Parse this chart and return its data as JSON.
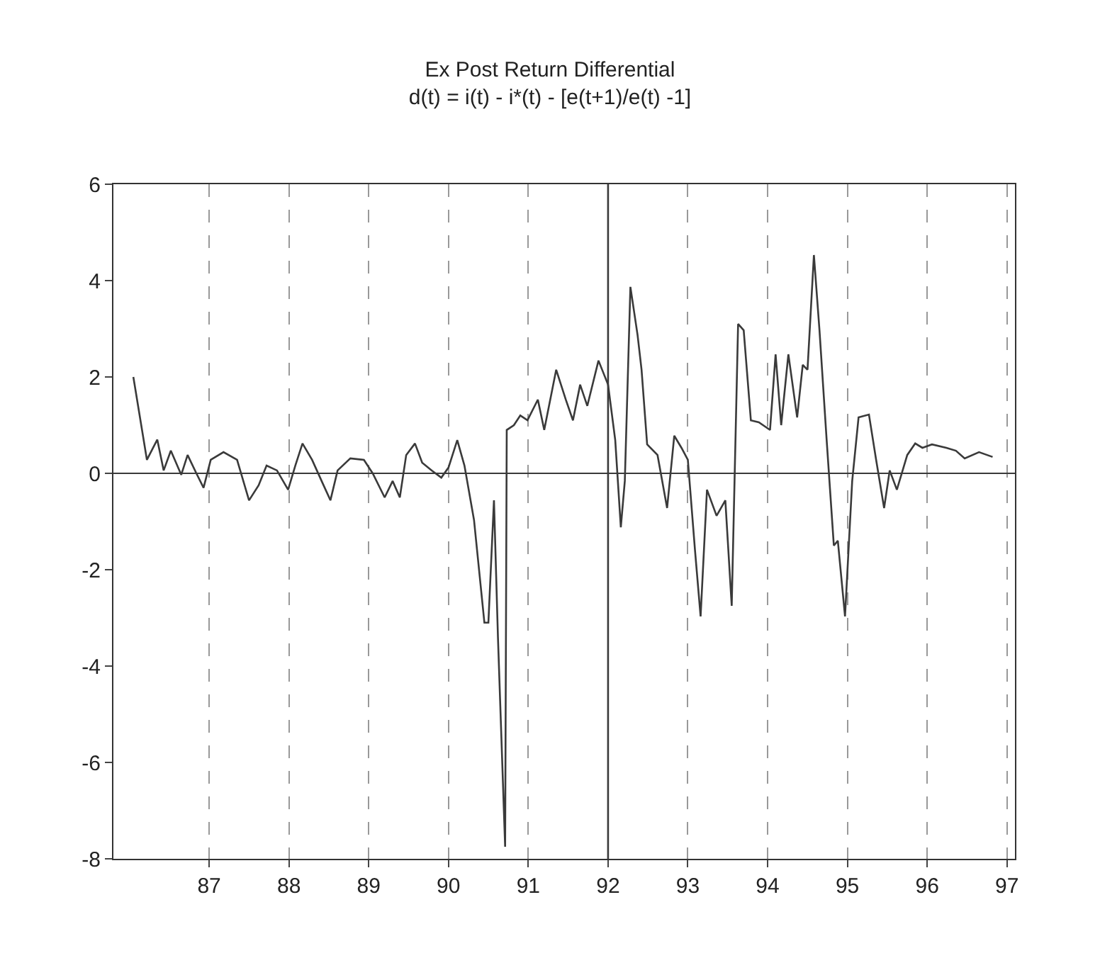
{
  "chart_data": {
    "type": "line",
    "title": "Ex Post Return Differential",
    "subtitle": "d(t) = i(t) - i*(t) - [e(t+1)/e(t) -1]",
    "x": [
      86.05,
      86.22,
      86.35,
      86.43,
      86.52,
      86.65,
      86.73,
      86.84,
      86.93,
      87.02,
      87.18,
      87.35,
      87.5,
      87.62,
      87.72,
      87.85,
      87.99,
      88.08,
      88.17,
      88.29,
      88.41,
      88.52,
      88.61,
      88.77,
      88.94,
      89.05,
      89.2,
      89.3,
      89.39,
      89.47,
      89.58,
      89.67,
      89.79,
      89.91,
      90.0,
      90.11,
      90.2,
      90.32,
      90.45,
      90.5,
      90.57,
      90.62,
      90.71,
      90.73,
      90.82,
      90.9,
      90.99,
      91.12,
      91.2,
      91.35,
      91.47,
      91.56,
      91.65,
      91.74,
      91.88,
      92.0,
      92.09,
      92.16,
      92.21,
      92.28,
      92.37,
      92.42,
      92.49,
      92.62,
      92.74,
      92.83,
      92.92,
      93.0,
      93.09,
      93.16,
      93.24,
      93.36,
      93.47,
      93.55,
      93.63,
      93.7,
      93.79,
      93.89,
      94.03,
      94.1,
      94.17,
      94.26,
      94.37,
      94.44,
      94.5,
      94.58,
      94.65,
      94.74,
      94.83,
      94.88,
      94.97,
      95.06,
      95.14,
      95.27,
      95.36,
      95.46,
      95.53,
      95.62,
      95.75,
      95.85,
      95.94,
      96.06,
      96.24,
      96.36,
      96.47,
      96.65,
      96.82
    ],
    "series": [
      {
        "color": "#3a3a3a",
        "values": [
          2.0,
          0.28,
          0.7,
          0.06,
          0.47,
          -0.03,
          0.38,
          0.0,
          -0.3,
          0.28,
          0.44,
          0.28,
          -0.56,
          -0.25,
          0.16,
          0.06,
          -0.34,
          0.16,
          0.62,
          0.28,
          -0.16,
          -0.56,
          0.06,
          0.31,
          0.28,
          0.0,
          -0.5,
          -0.16,
          -0.5,
          0.38,
          0.62,
          0.22,
          0.06,
          -0.09,
          0.12,
          0.69,
          0.16,
          -0.97,
          -3.1,
          -3.1,
          -0.56,
          -3.4,
          -7.75,
          0.9,
          1.0,
          1.2,
          1.1,
          1.53,
          0.9,
          2.15,
          1.53,
          1.1,
          1.84,
          1.4,
          2.34,
          1.84,
          0.69,
          -1.12,
          -0.16,
          3.87,
          2.87,
          2.15,
          0.6,
          0.38,
          -0.72,
          0.78,
          0.53,
          0.28,
          -1.6,
          -2.97,
          -0.34,
          -0.88,
          -0.56,
          -2.75,
          3.1,
          2.97,
          1.1,
          1.06,
          0.9,
          2.47,
          1.0,
          2.47,
          1.16,
          2.25,
          2.15,
          4.53,
          2.97,
          0.69,
          -1.5,
          -1.4,
          -2.97,
          -0.16,
          1.16,
          1.22,
          0.28,
          -0.72,
          0.06,
          -0.34,
          0.38,
          0.62,
          0.53,
          0.6,
          0.53,
          0.47,
          0.31,
          0.44,
          0.34
        ]
      }
    ],
    "xlim": [
      85.8,
      97.1
    ],
    "xticks": [
      87,
      88,
      89,
      90,
      91,
      92,
      93,
      94,
      95,
      96,
      97
    ],
    "ylim": [
      -8,
      6
    ],
    "yticks": [
      -8,
      -6,
      -4,
      -2,
      0,
      2,
      4,
      6
    ],
    "ref_lines": [
      {
        "axis": "y",
        "value": 0,
        "color": "#3a3a3a"
      },
      {
        "axis": "x",
        "value": 92,
        "color": "#3a3a3a"
      }
    ],
    "grid": "x",
    "marker": "none",
    "line_style": "solid"
  }
}
